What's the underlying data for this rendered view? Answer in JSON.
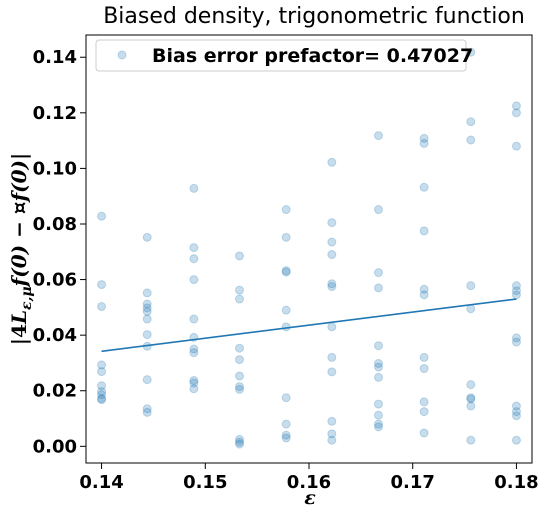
{
  "chart_data": {
    "type": "scatter",
    "title": "Biased density, trigonometric function",
    "xlabel": "ε",
    "ylabel": "|4L_{ε,μ}f(0) − ¤f(0)|",
    "legend": {
      "label": "Bias error prefactor= 0.47027",
      "placement": "top-left"
    },
    "xlim": [
      0.1385,
      0.1815
    ],
    "ylim": [
      -0.006,
      0.148
    ],
    "x_ticks": [
      {
        "value": 0.14,
        "label": "0.14"
      },
      {
        "value": 0.15,
        "label": "0.15"
      },
      {
        "value": 0.16,
        "label": "0.16"
      },
      {
        "value": 0.17,
        "label": "0.17"
      },
      {
        "value": 0.18,
        "label": "0.18"
      }
    ],
    "y_ticks": [
      {
        "value": 0.0,
        "label": "0.00"
      },
      {
        "value": 0.02,
        "label": "0.02"
      },
      {
        "value": 0.04,
        "label": "0.04"
      },
      {
        "value": 0.06,
        "label": "0.06"
      },
      {
        "value": 0.08,
        "label": "0.08"
      },
      {
        "value": 0.1,
        "label": "0.10"
      },
      {
        "value": 0.12,
        "label": "0.12"
      },
      {
        "value": 0.14,
        "label": "0.14"
      }
    ],
    "grid": false,
    "colors": {
      "points": "#1f77b4",
      "line": "#1f77b4"
    },
    "points": [
      {
        "x": 0.14,
        "y": 0.0828
      },
      {
        "x": 0.14,
        "y": 0.0582
      },
      {
        "x": 0.14,
        "y": 0.0503
      },
      {
        "x": 0.14,
        "y": 0.0293
      },
      {
        "x": 0.14,
        "y": 0.0269
      },
      {
        "x": 0.14,
        "y": 0.0218
      },
      {
        "x": 0.14,
        "y": 0.0197
      },
      {
        "x": 0.14,
        "y": 0.0186
      },
      {
        "x": 0.14,
        "y": 0.0172
      },
      {
        "x": 0.14,
        "y": 0.0168
      },
      {
        "x": 0.1444,
        "y": 0.0752
      },
      {
        "x": 0.1444,
        "y": 0.0552
      },
      {
        "x": 0.1444,
        "y": 0.0512
      },
      {
        "x": 0.1444,
        "y": 0.0498
      },
      {
        "x": 0.1444,
        "y": 0.0485
      },
      {
        "x": 0.1444,
        "y": 0.0458
      },
      {
        "x": 0.1444,
        "y": 0.0402
      },
      {
        "x": 0.1444,
        "y": 0.036
      },
      {
        "x": 0.1444,
        "y": 0.024
      },
      {
        "x": 0.1444,
        "y": 0.0135
      },
      {
        "x": 0.1444,
        "y": 0.0122
      },
      {
        "x": 0.1489,
        "y": 0.0928
      },
      {
        "x": 0.1489,
        "y": 0.0715
      },
      {
        "x": 0.1489,
        "y": 0.0675
      },
      {
        "x": 0.1489,
        "y": 0.06
      },
      {
        "x": 0.1489,
        "y": 0.0458
      },
      {
        "x": 0.1489,
        "y": 0.0392
      },
      {
        "x": 0.1489,
        "y": 0.035
      },
      {
        "x": 0.1489,
        "y": 0.0337
      },
      {
        "x": 0.1489,
        "y": 0.0237
      },
      {
        "x": 0.1489,
        "y": 0.0228
      },
      {
        "x": 0.1489,
        "y": 0.0207
      },
      {
        "x": 0.1533,
        "y": 0.0685
      },
      {
        "x": 0.1533,
        "y": 0.0562
      },
      {
        "x": 0.1533,
        "y": 0.053
      },
      {
        "x": 0.1533,
        "y": 0.0353
      },
      {
        "x": 0.1533,
        "y": 0.0312
      },
      {
        "x": 0.1533,
        "y": 0.0253
      },
      {
        "x": 0.1533,
        "y": 0.0215
      },
      {
        "x": 0.1533,
        "y": 0.0205
      },
      {
        "x": 0.1533,
        "y": 0.0025
      },
      {
        "x": 0.1533,
        "y": 0.0015
      },
      {
        "x": 0.1533,
        "y": 0.0008
      },
      {
        "x": 0.1578,
        "y": 0.0852
      },
      {
        "x": 0.1578,
        "y": 0.0752
      },
      {
        "x": 0.1578,
        "y": 0.0632
      },
      {
        "x": 0.1578,
        "y": 0.0627
      },
      {
        "x": 0.1578,
        "y": 0.049
      },
      {
        "x": 0.1578,
        "y": 0.043
      },
      {
        "x": 0.1578,
        "y": 0.0175
      },
      {
        "x": 0.1578,
        "y": 0.008
      },
      {
        "x": 0.1578,
        "y": 0.004
      },
      {
        "x": 0.1578,
        "y": 0.003
      },
      {
        "x": 0.1622,
        "y": 0.1022
      },
      {
        "x": 0.1622,
        "y": 0.0805
      },
      {
        "x": 0.1622,
        "y": 0.0735
      },
      {
        "x": 0.1622,
        "y": 0.069
      },
      {
        "x": 0.1622,
        "y": 0.0585
      },
      {
        "x": 0.1622,
        "y": 0.0575
      },
      {
        "x": 0.1622,
        "y": 0.043
      },
      {
        "x": 0.1622,
        "y": 0.032
      },
      {
        "x": 0.1622,
        "y": 0.0268
      },
      {
        "x": 0.1622,
        "y": 0.009
      },
      {
        "x": 0.1622,
        "y": 0.0045
      },
      {
        "x": 0.1622,
        "y": 0.0022
      },
      {
        "x": 0.1667,
        "y": 0.1118
      },
      {
        "x": 0.1667,
        "y": 0.0852
      },
      {
        "x": 0.1667,
        "y": 0.0625
      },
      {
        "x": 0.1667,
        "y": 0.057
      },
      {
        "x": 0.1667,
        "y": 0.0362
      },
      {
        "x": 0.1667,
        "y": 0.0298
      },
      {
        "x": 0.1667,
        "y": 0.0285
      },
      {
        "x": 0.1667,
        "y": 0.0248
      },
      {
        "x": 0.1667,
        "y": 0.0152
      },
      {
        "x": 0.1667,
        "y": 0.0112
      },
      {
        "x": 0.1667,
        "y": 0.008
      },
      {
        "x": 0.1667,
        "y": 0.007
      },
      {
        "x": 0.1711,
        "y": 0.1108
      },
      {
        "x": 0.1711,
        "y": 0.109
      },
      {
        "x": 0.1711,
        "y": 0.0932
      },
      {
        "x": 0.1711,
        "y": 0.0775
      },
      {
        "x": 0.1711,
        "y": 0.0565
      },
      {
        "x": 0.1711,
        "y": 0.0545
      },
      {
        "x": 0.1711,
        "y": 0.032
      },
      {
        "x": 0.1711,
        "y": 0.028
      },
      {
        "x": 0.1711,
        "y": 0.016
      },
      {
        "x": 0.1711,
        "y": 0.0125
      },
      {
        "x": 0.1711,
        "y": 0.0048
      },
      {
        "x": 0.1756,
        "y": 0.1418
      },
      {
        "x": 0.1756,
        "y": 0.1168
      },
      {
        "x": 0.1756,
        "y": 0.1102
      },
      {
        "x": 0.1756,
        "y": 0.0578
      },
      {
        "x": 0.1756,
        "y": 0.0495
      },
      {
        "x": 0.1756,
        "y": 0.0222
      },
      {
        "x": 0.1756,
        "y": 0.0175
      },
      {
        "x": 0.1756,
        "y": 0.017
      },
      {
        "x": 0.1756,
        "y": 0.0145
      },
      {
        "x": 0.1756,
        "y": 0.0022
      },
      {
        "x": 0.18,
        "y": 0.1225
      },
      {
        "x": 0.18,
        "y": 0.12
      },
      {
        "x": 0.18,
        "y": 0.108
      },
      {
        "x": 0.18,
        "y": 0.0578
      },
      {
        "x": 0.18,
        "y": 0.056
      },
      {
        "x": 0.18,
        "y": 0.0545
      },
      {
        "x": 0.18,
        "y": 0.039
      },
      {
        "x": 0.18,
        "y": 0.0375
      },
      {
        "x": 0.18,
        "y": 0.0145
      },
      {
        "x": 0.18,
        "y": 0.0125
      },
      {
        "x": 0.18,
        "y": 0.011
      },
      {
        "x": 0.18,
        "y": 0.0022
      }
    ],
    "fit_line": {
      "x": [
        0.14,
        0.18
      ],
      "y": [
        0.0342,
        0.053
      ]
    }
  }
}
